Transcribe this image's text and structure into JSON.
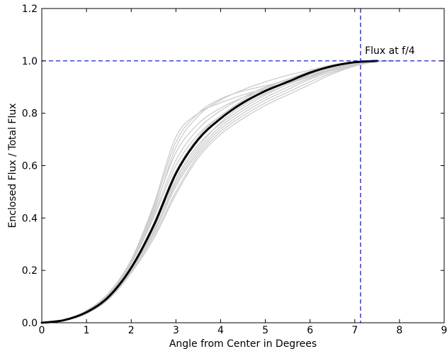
{
  "chart_data": {
    "type": "line",
    "title": "",
    "xlabel": "Angle from Center in Degrees",
    "ylabel": "Enclosed Flux / Total Flux",
    "xlim": [
      0,
      9
    ],
    "ylim": [
      0,
      1.2
    ],
    "xticks": [
      "0",
      "1",
      "2",
      "3",
      "4",
      "5",
      "6",
      "7",
      "8",
      "9"
    ],
    "yticks": [
      "0.0",
      "0.2",
      "0.4",
      "0.6",
      "0.8",
      "1.0",
      "1.2"
    ],
    "grid": false,
    "annotation": {
      "text": "Flux at f/4",
      "x": 7.1,
      "y": 1.0
    },
    "reference_lines": {
      "horizontal_y": 1.0,
      "vertical_x": 7.13,
      "color": "#0000ff"
    },
    "colors": {
      "mean": "#000000",
      "individual": "#cccccc",
      "reference": "#0000ff"
    },
    "series": [
      {
        "role": "mean",
        "x": [
          0,
          0.5,
          1.0,
          1.5,
          2.0,
          2.5,
          3.0,
          3.5,
          4.0,
          4.5,
          5.0,
          5.5,
          6.0,
          6.5,
          7.0,
          7.5
        ],
        "y": [
          0.0,
          0.01,
          0.04,
          0.1,
          0.21,
          0.37,
          0.57,
          0.7,
          0.78,
          0.84,
          0.885,
          0.92,
          0.955,
          0.98,
          0.995,
          1.0
        ]
      },
      {
        "role": "individual",
        "x": [
          0,
          0.5,
          1.0,
          1.5,
          2.0,
          2.5,
          3.0,
          3.5,
          4.0,
          4.5,
          5.0,
          5.5,
          6.0,
          6.5,
          7.0,
          7.5,
          8.0
        ],
        "y": [
          0.0,
          0.012,
          0.045,
          0.11,
          0.24,
          0.45,
          0.71,
          0.8,
          0.84,
          0.87,
          0.895,
          0.92,
          0.95,
          0.975,
          0.99,
          1.0,
          1.0
        ]
      },
      {
        "role": "individual",
        "x": [
          0,
          0.5,
          1.0,
          1.5,
          2.0,
          2.5,
          3.0,
          3.5,
          4.0,
          4.5,
          5.0,
          5.5,
          6.0,
          6.5,
          7.0,
          7.5,
          8.0
        ],
        "y": [
          0.0,
          0.011,
          0.042,
          0.105,
          0.23,
          0.42,
          0.67,
          0.79,
          0.85,
          0.89,
          0.92,
          0.945,
          0.965,
          0.985,
          0.995,
          1.0,
          1.0
        ]
      },
      {
        "role": "individual",
        "x": [
          0,
          0.5,
          1.0,
          1.5,
          2.0,
          2.5,
          3.0,
          3.5,
          4.0,
          4.5,
          5.0,
          5.5,
          6.0,
          6.5,
          7.0,
          7.5,
          8.0
        ],
        "y": [
          0.0,
          0.01,
          0.038,
          0.095,
          0.2,
          0.34,
          0.52,
          0.65,
          0.74,
          0.8,
          0.85,
          0.89,
          0.93,
          0.96,
          0.985,
          0.998,
          1.0
        ]
      },
      {
        "role": "individual",
        "x": [
          0,
          0.5,
          1.0,
          1.5,
          2.0,
          2.5,
          3.0,
          3.5,
          4.0,
          4.5,
          5.0,
          5.5,
          6.0,
          6.5,
          7.0,
          7.5,
          8.0
        ],
        "y": [
          0.0,
          0.009,
          0.035,
          0.09,
          0.19,
          0.32,
          0.49,
          0.63,
          0.72,
          0.78,
          0.83,
          0.87,
          0.91,
          0.95,
          0.98,
          0.997,
          1.0
        ]
      },
      {
        "role": "individual",
        "x": [
          0,
          0.5,
          1.0,
          1.5,
          2.0,
          2.5,
          3.0,
          3.5,
          4.0,
          4.5,
          5.0,
          5.5,
          6.0,
          6.5,
          7.0,
          7.5,
          8.0
        ],
        "y": [
          0.0,
          0.011,
          0.043,
          0.108,
          0.225,
          0.4,
          0.6,
          0.72,
          0.79,
          0.85,
          0.895,
          0.93,
          0.96,
          0.98,
          0.993,
          1.0,
          1.0
        ]
      },
      {
        "role": "individual",
        "x": [
          0,
          0.5,
          1.0,
          1.5,
          2.0,
          2.5,
          3.0,
          3.5,
          4.0,
          4.5,
          5.0,
          5.5,
          6.0,
          6.5,
          7.0,
          7.5,
          8.0
        ],
        "y": [
          0.0,
          0.01,
          0.04,
          0.1,
          0.21,
          0.36,
          0.55,
          0.68,
          0.76,
          0.82,
          0.87,
          0.91,
          0.945,
          0.97,
          0.99,
          0.999,
          1.0
        ]
      },
      {
        "role": "individual",
        "x": [
          0,
          0.5,
          1.0,
          1.5,
          2.0,
          2.5,
          3.0,
          3.5,
          4.0,
          4.5,
          5.0,
          5.5,
          6.0,
          6.5,
          7.0,
          7.5,
          8.0
        ],
        "y": [
          0.0,
          0.012,
          0.046,
          0.112,
          0.235,
          0.43,
          0.65,
          0.76,
          0.82,
          0.86,
          0.89,
          0.92,
          0.94,
          0.965,
          0.985,
          0.998,
          1.0
        ]
      },
      {
        "role": "individual",
        "x": [
          0,
          0.5,
          1.0,
          1.5,
          2.0,
          2.5,
          3.0,
          3.5,
          4.0,
          4.5,
          5.0,
          5.5,
          6.0,
          6.5,
          7.0,
          7.5,
          8.0
        ],
        "y": [
          0.0,
          0.01,
          0.039,
          0.098,
          0.205,
          0.35,
          0.53,
          0.66,
          0.75,
          0.81,
          0.86,
          0.9,
          0.935,
          0.965,
          0.988,
          0.999,
          1.0
        ]
      },
      {
        "role": "individual",
        "x": [
          0,
          0.5,
          1.0,
          1.5,
          2.0,
          2.5,
          3.0,
          3.5,
          4.0,
          4.5,
          5.0,
          5.5,
          6.0,
          6.5,
          7.0,
          7.5,
          8.0
        ],
        "y": [
          0.0,
          0.011,
          0.044,
          0.11,
          0.23,
          0.41,
          0.62,
          0.74,
          0.81,
          0.86,
          0.9,
          0.93,
          0.955,
          0.975,
          0.99,
          1.0,
          1.0
        ]
      },
      {
        "role": "individual",
        "x": [
          0,
          0.5,
          1.0,
          1.5,
          2.0,
          2.5,
          3.0,
          3.5,
          4.0,
          4.5,
          5.0,
          5.5,
          6.0,
          6.5,
          7.0,
          7.5,
          8.0
        ],
        "y": [
          0.0,
          0.009,
          0.036,
          0.092,
          0.195,
          0.33,
          0.5,
          0.64,
          0.73,
          0.79,
          0.84,
          0.88,
          0.92,
          0.955,
          0.982,
          0.998,
          1.0
        ]
      },
      {
        "role": "individual",
        "x": [
          0,
          0.5,
          1.0,
          1.5,
          2.0,
          2.5,
          3.0,
          3.5,
          4.0,
          4.5,
          5.0,
          5.5,
          6.0,
          6.5,
          7.0,
          7.5,
          8.0
        ],
        "y": [
          0.0,
          0.012,
          0.047,
          0.115,
          0.24,
          0.44,
          0.69,
          0.8,
          0.855,
          0.885,
          0.905,
          0.925,
          0.945,
          0.968,
          0.987,
          0.999,
          1.0
        ]
      },
      {
        "role": "individual",
        "x": [
          0,
          0.5,
          1.0,
          1.5,
          2.0,
          2.5,
          3.0,
          3.5,
          4.0,
          4.5,
          5.0,
          5.5,
          6.0,
          6.5,
          7.0,
          7.5,
          8.0
        ],
        "y": [
          0.0,
          0.01,
          0.041,
          0.102,
          0.215,
          0.38,
          0.58,
          0.71,
          0.79,
          0.845,
          0.885,
          0.915,
          0.945,
          0.97,
          0.99,
          1.0,
          1.0
        ]
      },
      {
        "role": "individual",
        "x": [
          0,
          0.5,
          1.0,
          1.5,
          2.0,
          2.5,
          3.0,
          3.5,
          4.0,
          4.5,
          5.0,
          5.5,
          6.0,
          6.5,
          7.0,
          7.5,
          8.0
        ],
        "y": [
          0.0,
          0.01,
          0.038,
          0.096,
          0.2,
          0.345,
          0.54,
          0.67,
          0.765,
          0.83,
          0.875,
          0.91,
          0.94,
          0.967,
          0.988,
          0.999,
          1.0
        ]
      }
    ]
  }
}
